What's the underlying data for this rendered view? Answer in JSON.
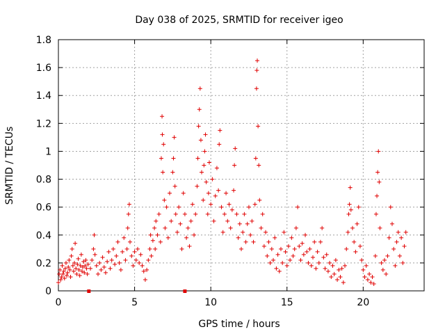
{
  "chart_data": {
    "type": "scatter",
    "title": "Day 038 of 2025, SRMTID for receiver igeo",
    "xlabel": "GPS time / hours",
    "ylabel": "SRMTID / TECUs",
    "xlim": [
      0,
      24
    ],
    "ylim": [
      0,
      1.8
    ],
    "xticks": [
      0,
      5,
      10,
      15,
      20
    ],
    "yticks": [
      0,
      0.2,
      0.4,
      0.6,
      0.8,
      1,
      1.2,
      1.4,
      1.6,
      1.8
    ],
    "xtick_labels": [
      "0",
      "5",
      "10",
      "15",
      "20"
    ],
    "ytick_labels": [
      "0",
      "0.2",
      "0.4",
      "0.6",
      "0.8",
      "1",
      "1.2",
      "1.4",
      "1.6",
      "1.8"
    ],
    "grid": true,
    "marker": "+",
    "color": "#e00000",
    "series": [
      {
        "name": "SRMTID",
        "points": [
          [
            0.0,
            0.06
          ],
          [
            0.05,
            0.12
          ],
          [
            0.1,
            0.15
          ],
          [
            0.15,
            0.08
          ],
          [
            0.2,
            0.1
          ],
          [
            0.25,
            0.18
          ],
          [
            0.3,
            0.12
          ],
          [
            0.35,
            0.14
          ],
          [
            0.4,
            0.09
          ],
          [
            0.45,
            0.16
          ],
          [
            0.5,
            0.2
          ],
          [
            0.55,
            0.11
          ],
          [
            0.6,
            0.13
          ],
          [
            0.65,
            0.17
          ],
          [
            0.7,
            0.22
          ],
          [
            0.75,
            0.15
          ],
          [
            0.8,
            0.1
          ],
          [
            0.85,
            0.25
          ],
          [
            0.9,
            0.3
          ],
          [
            0.95,
            0.18
          ],
          [
            1.0,
            0.14
          ],
          [
            1.05,
            0.2
          ],
          [
            1.1,
            0.34
          ],
          [
            1.15,
            0.16
          ],
          [
            1.2,
            0.12
          ],
          [
            1.25,
            0.19
          ],
          [
            1.3,
            0.23
          ],
          [
            1.35,
            0.15
          ],
          [
            1.4,
            0.11
          ],
          [
            1.45,
            0.18
          ],
          [
            1.5,
            0.26
          ],
          [
            1.55,
            0.14
          ],
          [
            1.6,
            0.17
          ],
          [
            1.65,
            0.21
          ],
          [
            1.7,
            0.13
          ],
          [
            1.75,
            0.18
          ],
          [
            1.8,
            0.22
          ],
          [
            1.85,
            0.16
          ],
          [
            1.9,
            0.12
          ],
          [
            1.95,
            0.19
          ],
          [
            2.1,
            0.16
          ],
          [
            2.2,
            0.22
          ],
          [
            2.3,
            0.3
          ],
          [
            2.35,
            0.4
          ],
          [
            2.4,
            0.26
          ],
          [
            2.5,
            0.18
          ],
          [
            2.6,
            0.12
          ],
          [
            2.7,
            0.2
          ],
          [
            2.8,
            0.15
          ],
          [
            2.9,
            0.24
          ],
          [
            3.0,
            0.17
          ],
          [
            3.1,
            0.13
          ],
          [
            3.2,
            0.21
          ],
          [
            3.3,
            0.28
          ],
          [
            3.4,
            0.16
          ],
          [
            3.5,
            0.22
          ],
          [
            3.6,
            0.3
          ],
          [
            3.7,
            0.19
          ],
          [
            3.8,
            0.25
          ],
          [
            3.9,
            0.35
          ],
          [
            4.0,
            0.2
          ],
          [
            4.1,
            0.15
          ],
          [
            4.2,
            0.28
          ],
          [
            4.3,
            0.38
          ],
          [
            4.4,
            0.22
          ],
          [
            4.5,
            0.3
          ],
          [
            4.55,
            0.45
          ],
          [
            4.6,
            0.55
          ],
          [
            4.65,
            0.62
          ],
          [
            4.7,
            0.35
          ],
          [
            4.8,
            0.25
          ],
          [
            4.9,
            0.18
          ],
          [
            5.0,
            0.28
          ],
          [
            5.1,
            0.22
          ],
          [
            5.2,
            0.3
          ],
          [
            5.3,
            0.2
          ],
          [
            5.4,
            0.26
          ],
          [
            5.5,
            0.18
          ],
          [
            5.6,
            0.14
          ],
          [
            5.7,
            0.08
          ],
          [
            5.8,
            0.15
          ],
          [
            5.9,
            0.22
          ],
          [
            6.0,
            0.3
          ],
          [
            6.05,
            0.4
          ],
          [
            6.1,
            0.25
          ],
          [
            6.2,
            0.36
          ],
          [
            6.3,
            0.45
          ],
          [
            6.35,
            0.3
          ],
          [
            6.4,
            0.5
          ],
          [
            6.5,
            0.4
          ],
          [
            6.6,
            0.55
          ],
          [
            6.7,
            0.35
          ],
          [
            6.75,
            0.95
          ],
          [
            6.8,
            1.25
          ],
          [
            6.82,
            1.12
          ],
          [
            6.85,
            0.85
          ],
          [
            6.9,
            1.05
          ],
          [
            6.95,
            0.65
          ],
          [
            7.0,
            0.45
          ],
          [
            7.1,
            0.6
          ],
          [
            7.2,
            0.38
          ],
          [
            7.3,
            0.7
          ],
          [
            7.4,
            0.5
          ],
          [
            7.5,
            0.85
          ],
          [
            7.55,
            0.95
          ],
          [
            7.6,
            1.1
          ],
          [
            7.65,
            0.75
          ],
          [
            7.7,
            0.55
          ],
          [
            7.8,
            0.42
          ],
          [
            7.9,
            0.6
          ],
          [
            8.0,
            0.48
          ],
          [
            8.1,
            0.3
          ],
          [
            8.2,
            0.7
          ],
          [
            8.3,
            0.55
          ],
          [
            8.4,
            0.38
          ],
          [
            8.5,
            0.45
          ],
          [
            8.6,
            0.32
          ],
          [
            8.7,
            0.5
          ],
          [
            8.8,
            0.62
          ],
          [
            8.9,
            0.4
          ],
          [
            9.0,
            0.55
          ],
          [
            9.1,
            0.75
          ],
          [
            9.15,
            0.95
          ],
          [
            9.2,
            1.18
          ],
          [
            9.25,
            1.3
          ],
          [
            9.3,
            1.45
          ],
          [
            9.35,
            1.08
          ],
          [
            9.4,
            0.85
          ],
          [
            9.5,
            0.65
          ],
          [
            9.55,
            0.9
          ],
          [
            9.6,
            1.0
          ],
          [
            9.65,
            1.12
          ],
          [
            9.7,
            0.78
          ],
          [
            9.8,
            0.55
          ],
          [
            9.85,
            0.7
          ],
          [
            9.9,
            0.92
          ],
          [
            10.0,
            0.62
          ],
          [
            10.1,
            0.8
          ],
          [
            10.2,
            0.5
          ],
          [
            10.3,
            0.68
          ],
          [
            10.4,
            0.88
          ],
          [
            10.5,
            0.72
          ],
          [
            10.55,
            1.05
          ],
          [
            10.6,
            1.15
          ],
          [
            10.7,
            0.6
          ],
          [
            10.8,
            0.42
          ],
          [
            10.9,
            0.55
          ],
          [
            11.0,
            0.7
          ],
          [
            11.1,
            0.5
          ],
          [
            11.2,
            0.62
          ],
          [
            11.3,
            0.45
          ],
          [
            11.4,
            0.58
          ],
          [
            11.5,
            0.72
          ],
          [
            11.55,
            0.9
          ],
          [
            11.6,
            1.02
          ],
          [
            11.7,
            0.55
          ],
          [
            11.8,
            0.38
          ],
          [
            11.9,
            0.48
          ],
          [
            12.0,
            0.3
          ],
          [
            12.1,
            0.42
          ],
          [
            12.2,
            0.55
          ],
          [
            12.3,
            0.35
          ],
          [
            12.4,
            0.48
          ],
          [
            12.5,
            0.6
          ],
          [
            12.6,
            0.4
          ],
          [
            12.7,
            0.5
          ],
          [
            12.8,
            0.35
          ],
          [
            12.9,
            0.62
          ],
          [
            12.95,
            0.95
          ],
          [
            13.0,
            1.45
          ],
          [
            13.02,
            1.58
          ],
          [
            13.05,
            1.65
          ],
          [
            13.1,
            1.18
          ],
          [
            13.15,
            0.9
          ],
          [
            13.2,
            0.65
          ],
          [
            13.3,
            0.45
          ],
          [
            13.4,
            0.55
          ],
          [
            13.5,
            0.32
          ],
          [
            13.6,
            0.42
          ],
          [
            13.7,
            0.25
          ],
          [
            13.8,
            0.35
          ],
          [
            13.9,
            0.2
          ],
          [
            14.0,
            0.3
          ],
          [
            14.1,
            0.22
          ],
          [
            14.2,
            0.38
          ],
          [
            14.3,
            0.16
          ],
          [
            14.4,
            0.26
          ],
          [
            14.5,
            0.14
          ],
          [
            14.6,
            0.3
          ],
          [
            14.7,
            0.2
          ],
          [
            14.8,
            0.42
          ],
          [
            14.9,
            0.28
          ],
          [
            15.0,
            0.18
          ],
          [
            15.1,
            0.32
          ],
          [
            15.2,
            0.22
          ],
          [
            15.3,
            0.38
          ],
          [
            15.4,
            0.25
          ],
          [
            15.5,
            0.3
          ],
          [
            15.6,
            0.45
          ],
          [
            15.7,
            0.6
          ],
          [
            15.8,
            0.32
          ],
          [
            15.9,
            0.22
          ],
          [
            16.0,
            0.34
          ],
          [
            16.1,
            0.26
          ],
          [
            16.2,
            0.4
          ],
          [
            16.3,
            0.28
          ],
          [
            16.4,
            0.2
          ],
          [
            16.5,
            0.3
          ],
          [
            16.6,
            0.18
          ],
          [
            16.7,
            0.24
          ],
          [
            16.8,
            0.35
          ],
          [
            16.9,
            0.16
          ],
          [
            17.0,
            0.28
          ],
          [
            17.1,
            0.2
          ],
          [
            17.2,
            0.35
          ],
          [
            17.3,
            0.45
          ],
          [
            17.4,
            0.24
          ],
          [
            17.5,
            0.16
          ],
          [
            17.6,
            0.26
          ],
          [
            17.7,
            0.14
          ],
          [
            17.8,
            0.2
          ],
          [
            17.9,
            0.1
          ],
          [
            18.0,
            0.18
          ],
          [
            18.1,
            0.12
          ],
          [
            18.2,
            0.22
          ],
          [
            18.3,
            0.08
          ],
          [
            18.4,
            0.15
          ],
          [
            18.5,
            0.1
          ],
          [
            18.6,
            0.16
          ],
          [
            18.7,
            0.06
          ],
          [
            18.8,
            0.18
          ],
          [
            18.9,
            0.3
          ],
          [
            19.0,
            0.42
          ],
          [
            19.05,
            0.55
          ],
          [
            19.1,
            0.62
          ],
          [
            19.15,
            0.74
          ],
          [
            19.2,
            0.58
          ],
          [
            19.3,
            0.45
          ],
          [
            19.4,
            0.35
          ],
          [
            19.5,
            0.28
          ],
          [
            19.6,
            0.48
          ],
          [
            19.7,
            0.6
          ],
          [
            19.8,
            0.32
          ],
          [
            19.9,
            0.22
          ],
          [
            20.0,
            0.15
          ],
          [
            20.1,
            0.1
          ],
          [
            20.2,
            0.18
          ],
          [
            20.3,
            0.08
          ],
          [
            20.4,
            0.12
          ],
          [
            20.5,
            0.06
          ],
          [
            20.6,
            0.1
          ],
          [
            20.7,
            0.05
          ],
          [
            20.8,
            0.25
          ],
          [
            20.85,
            0.55
          ],
          [
            20.9,
            0.68
          ],
          [
            20.95,
            0.85
          ],
          [
            21.0,
            1.0
          ],
          [
            21.05,
            0.78
          ],
          [
            21.1,
            0.45
          ],
          [
            21.2,
            0.2
          ],
          [
            21.3,
            0.15
          ],
          [
            21.4,
            0.22
          ],
          [
            21.5,
            0.12
          ],
          [
            21.6,
            0.25
          ],
          [
            21.7,
            0.38
          ],
          [
            21.8,
            0.6
          ],
          [
            21.9,
            0.48
          ],
          [
            22.0,
            0.3
          ],
          [
            22.1,
            0.18
          ],
          [
            22.2,
            0.35
          ],
          [
            22.3,
            0.42
          ],
          [
            22.4,
            0.25
          ],
          [
            22.5,
            0.38
          ],
          [
            22.6,
            0.2
          ],
          [
            22.7,
            0.32
          ],
          [
            22.8,
            0.42
          ]
        ]
      }
    ],
    "gap_markers": [
      2.0,
      8.3
    ]
  }
}
